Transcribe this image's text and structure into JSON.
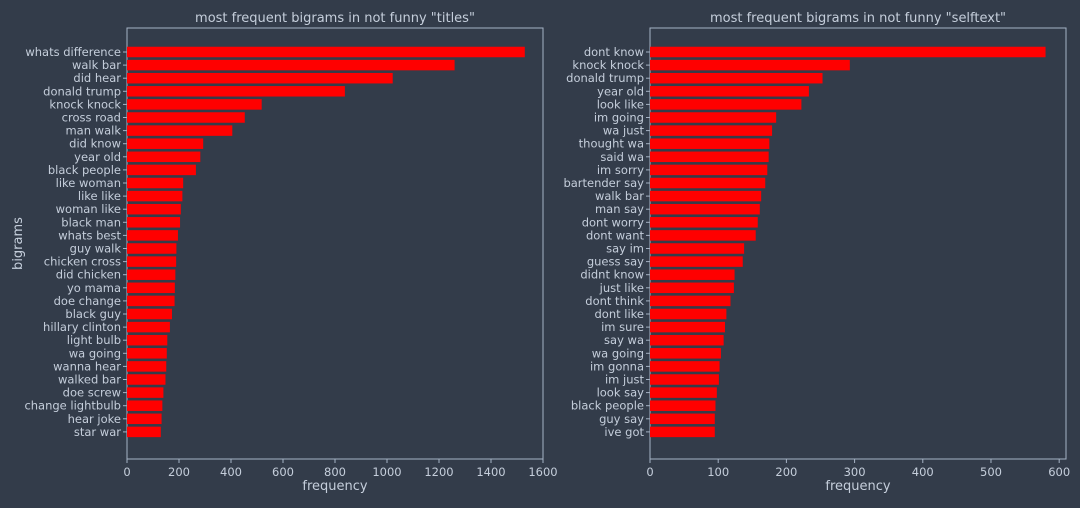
{
  "style": {
    "background": "#333c4a",
    "bar_color": "#ff0000",
    "axis_color": "#a6b3c5",
    "text_color": "#c5cedb"
  },
  "chart_data": [
    {
      "type": "bar",
      "orientation": "horizontal",
      "title": "most frequent bigrams in not funny \"titles\"",
      "xlabel": "frequency",
      "ylabel": "bigrams",
      "xlim": [
        0,
        1600
      ],
      "xticks": [
        0,
        200,
        400,
        600,
        800,
        1000,
        1200,
        1400,
        1600
      ],
      "grid": false,
      "categories": [
        "whats difference",
        "walk bar",
        "did hear",
        "donald trump",
        "knock knock",
        "cross road",
        "man walk",
        "did know",
        "year old",
        "black people",
        "like woman",
        "like like",
        "woman like",
        "black man",
        "whats best",
        "guy walk",
        "chicken cross",
        "did chicken",
        "yo mama",
        "doe change",
        "black guy",
        "hillary clinton",
        "light bulb",
        "wa going",
        "wanna hear",
        "walked bar",
        "doe screw",
        "change lightbulb",
        "hear joke",
        "star war"
      ],
      "values": [
        1530,
        1260,
        1022,
        838,
        518,
        453,
        405,
        293,
        282,
        265,
        216,
        213,
        207,
        204,
        196,
        190,
        189,
        186,
        184,
        183,
        173,
        165,
        155,
        153,
        151,
        148,
        140,
        136,
        133,
        130
      ]
    },
    {
      "type": "bar",
      "orientation": "horizontal",
      "title": "most frequent bigrams in not funny \"selftext\"",
      "xlabel": "frequency",
      "ylabel": "",
      "xlim": [
        0,
        610
      ],
      "xticks": [
        0,
        100,
        200,
        300,
        400,
        500,
        600
      ],
      "grid": false,
      "categories": [
        "dont know",
        "knock knock",
        "donald trump",
        "year old",
        "look like",
        "im going",
        "wa just",
        "thought wa",
        "said wa",
        "im sorry",
        "bartender say",
        "walk bar",
        "man say",
        "dont worry",
        "dont want",
        "say im",
        "guess say",
        "didnt know",
        "just like",
        "dont think",
        "dont like",
        "im sure",
        "say wa",
        "wa going",
        "im gonna",
        "im just",
        "look say",
        "black people",
        "guy say",
        "ive got"
      ],
      "values": [
        580,
        293,
        253,
        233,
        222,
        185,
        179,
        175,
        174,
        172,
        169,
        163,
        161,
        158,
        155,
        138,
        136,
        124,
        123,
        118,
        112,
        110,
        108,
        104,
        102,
        101,
        98,
        96,
        95,
        95
      ]
    }
  ]
}
